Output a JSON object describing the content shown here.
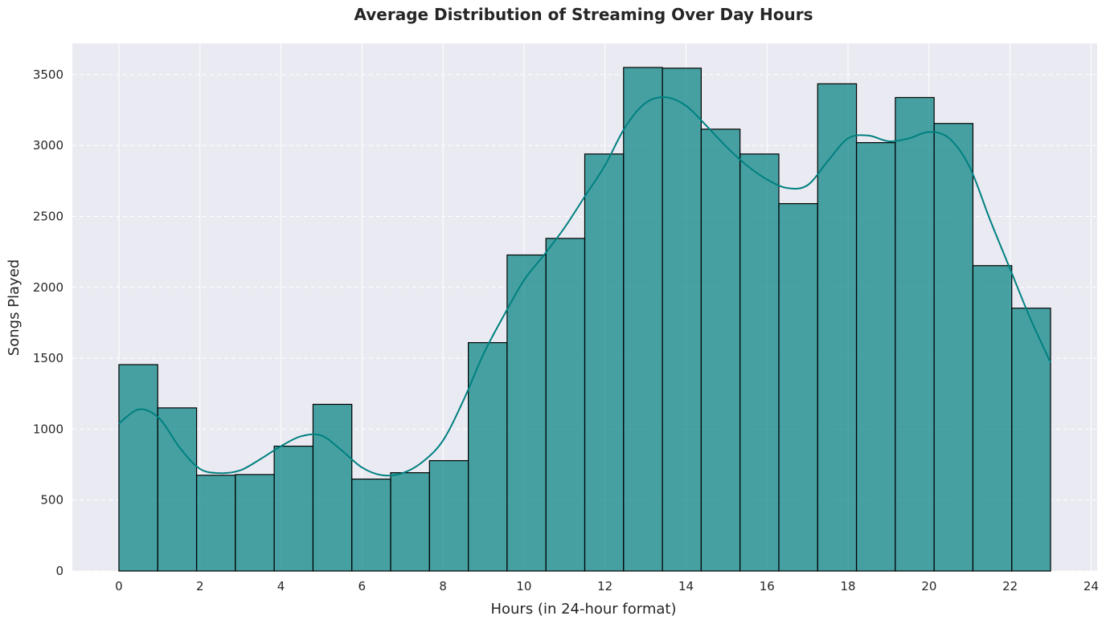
{
  "chart_data": {
    "type": "bar",
    "title": "Average Distribution of Streaming Over Day Hours",
    "xlabel": "Hours (in 24-hour format)",
    "ylabel": "Songs Played",
    "xlim": [
      -1.15,
      24.15
    ],
    "ylim": [
      0,
      3720
    ],
    "x_ticks": [
      0,
      2,
      4,
      6,
      8,
      10,
      12,
      14,
      16,
      18,
      20,
      22,
      24
    ],
    "y_ticks": [
      0,
      500,
      1000,
      1500,
      2000,
      2500,
      3000,
      3500
    ],
    "bin_edges": [
      0,
      0.958,
      1.917,
      2.875,
      3.833,
      4.792,
      5.75,
      6.708,
      7.667,
      8.625,
      9.583,
      10.542,
      11.5,
      12.458,
      13.417,
      14.375,
      15.333,
      16.292,
      17.25,
      18.208,
      19.167,
      20.125,
      21.083,
      22.042,
      23
    ],
    "values": [
      1455,
      1150,
      675,
      680,
      880,
      1175,
      648,
      693,
      778,
      1610,
      2228,
      2345,
      2940,
      3550,
      3545,
      3115,
      2940,
      2590,
      3435,
      3020,
      3338,
      3155,
      2153,
      1853
    ],
    "kde": {
      "x": [
        0,
        0.5,
        1,
        1.5,
        2,
        2.5,
        3,
        3.5,
        4,
        4.5,
        5,
        5.5,
        6,
        6.5,
        7,
        7.5,
        8,
        8.5,
        9,
        9.5,
        10,
        10.5,
        11,
        11.5,
        12,
        12.5,
        13,
        13.5,
        14,
        14.5,
        15,
        15.5,
        16,
        16.5,
        17,
        17.5,
        18,
        18.5,
        19,
        19.5,
        20,
        20.5,
        21,
        21.5,
        22,
        22.5,
        23
      ],
      "y": [
        1040,
        1140,
        1075,
        870,
        720,
        690,
        710,
        790,
        880,
        950,
        955,
        850,
        730,
        675,
        690,
        770,
        920,
        1200,
        1530,
        1800,
        2050,
        2230,
        2420,
        2640,
        2860,
        3130,
        3300,
        3340,
        3280,
        3140,
        2990,
        2860,
        2760,
        2700,
        2720,
        2890,
        3050,
        3070,
        3030,
        3050,
        3095,
        3050,
        2850,
        2480,
        2130,
        1780,
        1470
      ]
    },
    "bar_color": "#008080",
    "bar_edge_color": "#000000",
    "kde_color": "#008080",
    "background_color": "#EAEAF2",
    "grid": true
  }
}
